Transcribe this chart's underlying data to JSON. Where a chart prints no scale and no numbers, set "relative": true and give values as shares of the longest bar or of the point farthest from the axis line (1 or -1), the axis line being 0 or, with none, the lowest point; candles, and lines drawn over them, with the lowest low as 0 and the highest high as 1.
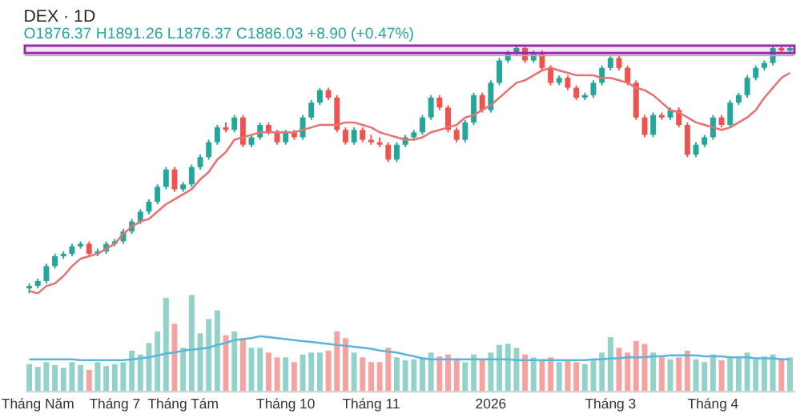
{
  "chart_data": [
    {
      "type": "candlestick",
      "title": "DEX · 1D",
      "subtitle": "O1876.37 H1891.26 L1876.37 C1886.03 +8.90 (+0.47%)",
      "relative": true,
      "tick_labels": false,
      "categories": [
        null,
        null,
        null,
        null,
        null,
        null,
        null,
        null,
        null,
        null,
        null,
        null,
        null,
        null,
        null,
        null,
        null,
        null,
        null,
        null,
        null,
        null,
        null,
        null,
        null,
        null,
        null,
        null,
        null,
        null,
        null,
        null,
        null,
        null,
        null,
        null,
        null,
        null,
        null,
        null,
        null,
        null,
        null,
        null,
        null,
        null,
        null,
        null,
        null,
        null,
        null,
        null,
        null,
        null,
        null,
        null,
        null,
        null,
        null,
        null,
        null,
        null,
        null,
        null,
        null,
        null,
        null,
        null,
        null,
        null,
        null,
        null,
        null,
        null,
        null,
        null,
        null,
        null,
        null,
        null,
        null,
        null,
        null,
        null,
        null,
        null,
        null,
        null,
        null,
        null
      ],
      "ohlc": [
        [
          0.02,
          0.04,
          0.0,
          0.03
        ],
        [
          0.03,
          0.06,
          0.02,
          0.05
        ],
        [
          0.05,
          0.12,
          0.04,
          0.11
        ],
        [
          0.11,
          0.16,
          0.1,
          0.15
        ],
        [
          0.15,
          0.17,
          0.14,
          0.16
        ],
        [
          0.16,
          0.2,
          0.15,
          0.19
        ],
        [
          0.19,
          0.21,
          0.18,
          0.2
        ],
        [
          0.2,
          0.21,
          0.15,
          0.16
        ],
        [
          0.16,
          0.18,
          0.15,
          0.17
        ],
        [
          0.17,
          0.21,
          0.16,
          0.2
        ],
        [
          0.2,
          0.22,
          0.19,
          0.21
        ],
        [
          0.21,
          0.26,
          0.2,
          0.25
        ],
        [
          0.25,
          0.3,
          0.24,
          0.29
        ],
        [
          0.29,
          0.34,
          0.28,
          0.33
        ],
        [
          0.33,
          0.38,
          0.32,
          0.37
        ],
        [
          0.37,
          0.44,
          0.36,
          0.43
        ],
        [
          0.43,
          0.51,
          0.42,
          0.5
        ],
        [
          0.5,
          0.51,
          0.41,
          0.42
        ],
        [
          0.42,
          0.45,
          0.41,
          0.44
        ],
        [
          0.44,
          0.52,
          0.43,
          0.51
        ],
        [
          0.51,
          0.56,
          0.5,
          0.55
        ],
        [
          0.55,
          0.62,
          0.54,
          0.61
        ],
        [
          0.61,
          0.68,
          0.6,
          0.67
        ],
        [
          0.67,
          0.69,
          0.65,
          0.66
        ],
        [
          0.66,
          0.72,
          0.65,
          0.71
        ],
        [
          0.71,
          0.72,
          0.59,
          0.6
        ],
        [
          0.6,
          0.64,
          0.59,
          0.63
        ],
        [
          0.63,
          0.69,
          0.62,
          0.68
        ],
        [
          0.68,
          0.69,
          0.64,
          0.65
        ],
        [
          0.65,
          0.66,
          0.6,
          0.61
        ],
        [
          0.61,
          0.66,
          0.6,
          0.65
        ],
        [
          0.65,
          0.66,
          0.62,
          0.63
        ],
        [
          0.63,
          0.72,
          0.62,
          0.71
        ],
        [
          0.71,
          0.78,
          0.7,
          0.77
        ],
        [
          0.77,
          0.83,
          0.76,
          0.82
        ],
        [
          0.82,
          0.83,
          0.78,
          0.79
        ],
        [
          0.79,
          0.8,
          0.65,
          0.66
        ],
        [
          0.66,
          0.67,
          0.6,
          0.61
        ],
        [
          0.61,
          0.67,
          0.6,
          0.66
        ],
        [
          0.66,
          0.67,
          0.61,
          0.62
        ],
        [
          0.62,
          0.64,
          0.6,
          0.61
        ],
        [
          0.61,
          0.63,
          0.59,
          0.6
        ],
        [
          0.6,
          0.61,
          0.53,
          0.54
        ],
        [
          0.54,
          0.61,
          0.53,
          0.6
        ],
        [
          0.6,
          0.64,
          0.59,
          0.63
        ],
        [
          0.63,
          0.66,
          0.62,
          0.65
        ],
        [
          0.65,
          0.72,
          0.64,
          0.71
        ],
        [
          0.71,
          0.8,
          0.7,
          0.79
        ],
        [
          0.79,
          0.8,
          0.74,
          0.75
        ],
        [
          0.75,
          0.76,
          0.65,
          0.66
        ],
        [
          0.66,
          0.67,
          0.61,
          0.62
        ],
        [
          0.62,
          0.7,
          0.61,
          0.69
        ],
        [
          0.69,
          0.81,
          0.68,
          0.8
        ],
        [
          0.8,
          0.81,
          0.73,
          0.74
        ],
        [
          0.74,
          0.86,
          0.73,
          0.85
        ],
        [
          0.85,
          0.95,
          0.84,
          0.94
        ],
        [
          0.94,
          0.98,
          0.93,
          0.97
        ],
        [
          0.97,
          1.0,
          0.96,
          0.99
        ],
        [
          0.99,
          1.0,
          0.93,
          0.94
        ],
        [
          0.94,
          0.98,
          0.93,
          0.97
        ],
        [
          0.97,
          0.98,
          0.9,
          0.91
        ],
        [
          0.91,
          0.92,
          0.84,
          0.85
        ],
        [
          0.85,
          0.88,
          0.84,
          0.87
        ],
        [
          0.87,
          0.88,
          0.82,
          0.83
        ],
        [
          0.83,
          0.84,
          0.78,
          0.79
        ],
        [
          0.79,
          0.81,
          0.78,
          0.8
        ],
        [
          0.8,
          0.86,
          0.79,
          0.85
        ],
        [
          0.85,
          0.92,
          0.84,
          0.91
        ],
        [
          0.91,
          0.96,
          0.9,
          0.95
        ],
        [
          0.95,
          0.96,
          0.9,
          0.91
        ],
        [
          0.91,
          0.92,
          0.84,
          0.85
        ],
        [
          0.85,
          0.86,
          0.7,
          0.71
        ],
        [
          0.71,
          0.72,
          0.63,
          0.64
        ],
        [
          0.64,
          0.73,
          0.63,
          0.72
        ],
        [
          0.72,
          0.73,
          0.7,
          0.71
        ],
        [
          0.71,
          0.75,
          0.7,
          0.74
        ],
        [
          0.74,
          0.75,
          0.67,
          0.68
        ],
        [
          0.68,
          0.69,
          0.55,
          0.56
        ],
        [
          0.56,
          0.61,
          0.55,
          0.6
        ],
        [
          0.6,
          0.64,
          0.59,
          0.63
        ],
        [
          0.63,
          0.72,
          0.62,
          0.71
        ],
        [
          0.71,
          0.72,
          0.67,
          0.68
        ],
        [
          0.68,
          0.78,
          0.67,
          0.77
        ],
        [
          0.77,
          0.81,
          0.76,
          0.8
        ],
        [
          0.8,
          0.88,
          0.79,
          0.87
        ],
        [
          0.87,
          0.92,
          0.86,
          0.91
        ],
        [
          0.91,
          0.94,
          0.9,
          0.93
        ],
        [
          0.93,
          1.0,
          0.92,
          0.99
        ],
        [
          0.99,
          1.0,
          0.97,
          0.98
        ],
        [
          0.98,
          1.0,
          0.97,
          0.99
        ]
      ],
      "colors": [
        "#26a69a",
        "#26a69a",
        "#26a69a",
        "#26a69a",
        "#26a69a",
        "#26a69a",
        "#26a69a",
        "#ef5350",
        "#26a69a",
        "#26a69a",
        "#26a69a",
        "#26a69a",
        "#26a69a",
        "#26a69a",
        "#26a69a",
        "#26a69a",
        "#26a69a",
        "#ef5350",
        "#26a69a",
        "#26a69a",
        "#26a69a",
        "#26a69a",
        "#26a69a",
        "#ef5350",
        "#26a69a",
        "#ef5350",
        "#26a69a",
        "#26a69a",
        "#ef5350",
        "#ef5350",
        "#26a69a",
        "#ef5350",
        "#26a69a",
        "#26a69a",
        "#26a69a",
        "#ef5350",
        "#ef5350",
        "#ef5350",
        "#26a69a",
        "#ef5350",
        "#ef5350",
        "#ef5350",
        "#ef5350",
        "#26a69a",
        "#26a69a",
        "#26a69a",
        "#26a69a",
        "#26a69a",
        "#ef5350",
        "#ef5350",
        "#ef5350",
        "#26a69a",
        "#26a69a",
        "#ef5350",
        "#26a69a",
        "#26a69a",
        "#26a69a",
        "#26a69a",
        "#ef5350",
        "#26a69a",
        "#ef5350",
        "#ef5350",
        "#26a69a",
        "#ef5350",
        "#ef5350",
        "#26a69a",
        "#26a69a",
        "#26a69a",
        "#26a69a",
        "#ef5350",
        "#ef5350",
        "#ef5350",
        "#ef5350",
        "#26a69a",
        "#ef5350",
        "#26a69a",
        "#ef5350",
        "#ef5350",
        "#26a69a",
        "#26a69a",
        "#26a69a",
        "#ef5350",
        "#26a69a",
        "#26a69a",
        "#26a69a",
        "#26a69a",
        "#26a69a",
        "#26a69a",
        "#ef5350",
        "#26a69a"
      ],
      "series": [
        {
          "type": "line",
          "color": "#e57373",
          "values": [
            0.01,
            0.0,
            0.03,
            0.04,
            0.07,
            0.11,
            0.14,
            0.15,
            0.16,
            0.18,
            0.2,
            0.24,
            0.27,
            0.29,
            0.3,
            0.33,
            0.36,
            0.38,
            0.4,
            0.42,
            0.46,
            0.49,
            0.54,
            0.57,
            0.62,
            0.63,
            0.64,
            0.65,
            0.65,
            0.65,
            0.65,
            0.65,
            0.66,
            0.67,
            0.68,
            0.68,
            0.68,
            0.69,
            0.69,
            0.68,
            0.67,
            0.65,
            0.64,
            0.63,
            0.62,
            0.62,
            0.63,
            0.65,
            0.66,
            0.67,
            0.68,
            0.71,
            0.72,
            0.74,
            0.76,
            0.79,
            0.82,
            0.85,
            0.86,
            0.88,
            0.9,
            0.91,
            0.9,
            0.89,
            0.88,
            0.88,
            0.88,
            0.87,
            0.87,
            0.86,
            0.85,
            0.83,
            0.82,
            0.8,
            0.77,
            0.74,
            0.73,
            0.71,
            0.69,
            0.68,
            0.67,
            0.66,
            0.67,
            0.69,
            0.71,
            0.74,
            0.79,
            0.83,
            0.87,
            0.89
          ]
        }
      ],
      "bands": [
        {
          "axis": "y",
          "from": 0.97,
          "to": 1.0,
          "color": "#9c27b0"
        }
      ],
      "ref_lines": [
        {
          "axis": "y",
          "value": 0.96,
          "color": "#b0b0b0"
        }
      ]
    },
    {
      "type": "bar",
      "relative": true,
      "tick_labels": "x",
      "categories": [
        null,
        "Tháng Năm",
        null,
        null,
        null,
        null,
        null,
        null,
        null,
        null,
        "Tháng 7",
        null,
        null,
        null,
        null,
        null,
        null,
        null,
        "Tháng Tám",
        null,
        null,
        null,
        null,
        null,
        null,
        null,
        null,
        null,
        null,
        null,
        "Tháng 10",
        null,
        null,
        null,
        null,
        null,
        null,
        null,
        null,
        null,
        "Tháng 11",
        null,
        null,
        null,
        null,
        null,
        null,
        null,
        null,
        null,
        null,
        null,
        null,
        null,
        "2026",
        null,
        null,
        null,
        null,
        null,
        null,
        null,
        null,
        null,
        null,
        null,
        null,
        null,
        "Tháng 3",
        null,
        null,
        null,
        null,
        null,
        null,
        null,
        null,
        null,
        null,
        null,
        "Tháng 4",
        null,
        null,
        null,
        null,
        null,
        null,
        null,
        null,
        null
      ],
      "values": [
        0.28,
        0.25,
        0.3,
        0.27,
        0.24,
        0.3,
        0.27,
        0.22,
        0.3,
        0.26,
        0.28,
        0.3,
        0.42,
        0.38,
        0.5,
        0.62,
        0.97,
        0.7,
        0.45,
        1.0,
        0.6,
        0.75,
        0.84,
        0.58,
        0.62,
        0.55,
        0.45,
        0.45,
        0.4,
        0.35,
        0.35,
        0.3,
        0.38,
        0.4,
        0.4,
        0.42,
        0.62,
        0.55,
        0.4,
        0.35,
        0.3,
        0.3,
        0.45,
        0.35,
        0.32,
        0.33,
        0.35,
        0.4,
        0.36,
        0.38,
        0.34,
        0.3,
        0.38,
        0.33,
        0.4,
        0.48,
        0.49,
        0.45,
        0.38,
        0.35,
        0.33,
        0.35,
        0.3,
        0.32,
        0.3,
        0.28,
        0.33,
        0.4,
        0.56,
        0.45,
        0.4,
        0.52,
        0.49,
        0.4,
        0.35,
        0.33,
        0.35,
        0.42,
        0.33,
        0.3,
        0.38,
        0.32,
        0.35,
        0.36,
        0.4,
        0.33,
        0.36,
        0.38,
        0.34,
        0.35
      ],
      "colors": [
        "#92d2c8",
        "#92d2c8",
        "#92d2c8",
        "#92d2c8",
        "#92d2c8",
        "#92d2c8",
        "#92d2c8",
        "#f5a3a1",
        "#92d2c8",
        "#92d2c8",
        "#92d2c8",
        "#92d2c8",
        "#92d2c8",
        "#92d2c8",
        "#92d2c8",
        "#92d2c8",
        "#92d2c8",
        "#f5a3a1",
        "#92d2c8",
        "#92d2c8",
        "#92d2c8",
        "#92d2c8",
        "#92d2c8",
        "#f5a3a1",
        "#92d2c8",
        "#f5a3a1",
        "#92d2c8",
        "#92d2c8",
        "#f5a3a1",
        "#f5a3a1",
        "#92d2c8",
        "#f5a3a1",
        "#92d2c8",
        "#92d2c8",
        "#92d2c8",
        "#f5a3a1",
        "#f5a3a1",
        "#f5a3a1",
        "#92d2c8",
        "#f5a3a1",
        "#f5a3a1",
        "#f5a3a1",
        "#f5a3a1",
        "#92d2c8",
        "#92d2c8",
        "#92d2c8",
        "#92d2c8",
        "#92d2c8",
        "#f5a3a1",
        "#f5a3a1",
        "#f5a3a1",
        "#92d2c8",
        "#92d2c8",
        "#f5a3a1",
        "#92d2c8",
        "#92d2c8",
        "#92d2c8",
        "#92d2c8",
        "#f5a3a1",
        "#92d2c8",
        "#f5a3a1",
        "#f5a3a1",
        "#92d2c8",
        "#f5a3a1",
        "#f5a3a1",
        "#92d2c8",
        "#92d2c8",
        "#92d2c8",
        "#92d2c8",
        "#f5a3a1",
        "#f5a3a1",
        "#f5a3a1",
        "#f5a3a1",
        "#92d2c8",
        "#f5a3a1",
        "#92d2c8",
        "#f5a3a1",
        "#f5a3a1",
        "#92d2c8",
        "#92d2c8",
        "#92d2c8",
        "#f5a3a1",
        "#92d2c8",
        "#92d2c8",
        "#92d2c8",
        "#92d2c8",
        "#92d2c8",
        "#92d2c8",
        "#f5a3a1",
        "#92d2c8"
      ],
      "series": [
        {
          "type": "line",
          "color": "#5ab4dc",
          "values": [
            0.33,
            0.33,
            0.33,
            0.33,
            0.33,
            0.33,
            0.32,
            0.32,
            0.32,
            0.32,
            0.32,
            0.32,
            0.33,
            0.34,
            0.35,
            0.37,
            0.39,
            0.4,
            0.42,
            0.43,
            0.44,
            0.45,
            0.48,
            0.5,
            0.53,
            0.54,
            0.55,
            0.57,
            0.56,
            0.55,
            0.54,
            0.53,
            0.52,
            0.51,
            0.5,
            0.49,
            0.48,
            0.47,
            0.46,
            0.45,
            0.44,
            0.42,
            0.41,
            0.4,
            0.38,
            0.36,
            0.34,
            0.33,
            0.33,
            0.33,
            0.33,
            0.33,
            0.33,
            0.33,
            0.33,
            0.33,
            0.33,
            0.32,
            0.32,
            0.32,
            0.32,
            0.32,
            0.32,
            0.32,
            0.32,
            0.32,
            0.33,
            0.33,
            0.34,
            0.34,
            0.35,
            0.35,
            0.35,
            0.36,
            0.36,
            0.37,
            0.37,
            0.37,
            0.37,
            0.36,
            0.36,
            0.36,
            0.35,
            0.35,
            0.35,
            0.34,
            0.34,
            0.34,
            0.33,
            0.33
          ]
        }
      ]
    }
  ]
}
